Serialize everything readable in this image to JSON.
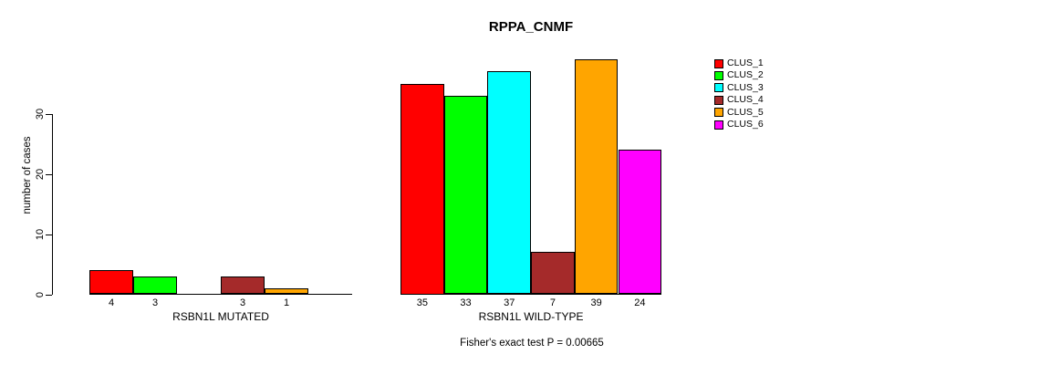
{
  "chart_data": {
    "type": "bar",
    "title": "RPPA_CNMF",
    "ylabel": "number of cases",
    "xlabel": "",
    "yticks": [
      0,
      10,
      20,
      30
    ],
    "ylim": [
      0,
      39
    ],
    "grid": false,
    "legend_position": "right",
    "clusters": [
      "CLUS_1",
      "CLUS_2",
      "CLUS_3",
      "CLUS_4",
      "CLUS_5",
      "CLUS_6"
    ],
    "cluster_colors": [
      "#FF0000",
      "#00FF00",
      "#00FFFF",
      "#A52A2A",
      "#FFA500",
      "#FF00FF"
    ],
    "groups": [
      {
        "label": "RSBN1L MUTATED",
        "values": [
          4,
          3,
          0,
          3,
          1,
          0
        ]
      },
      {
        "label": "RSBN1L WILD-TYPE",
        "values": [
          35,
          33,
          37,
          7,
          39,
          24
        ]
      }
    ],
    "annotation": "Fisher's exact test P = 0.00665"
  }
}
